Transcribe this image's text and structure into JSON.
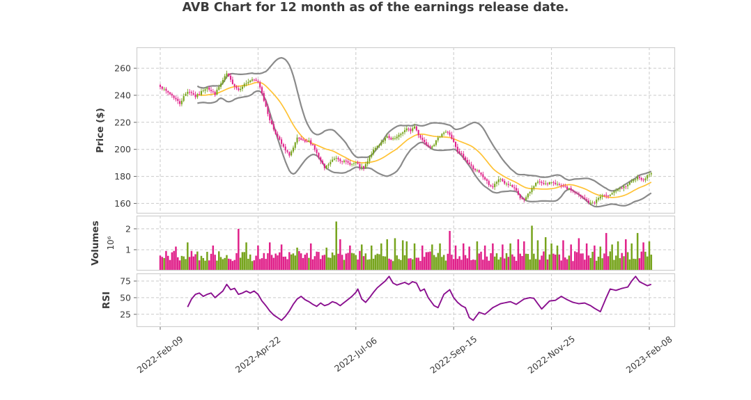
{
  "chart_data": {
    "type": "candlestick+volume+rsi",
    "title": "AVB Chart for 12 month as of the earnings release date.",
    "n_points": 252,
    "x_axis": {
      "tick_indices": [
        0,
        50,
        100,
        150,
        200,
        250
      ],
      "tick_labels": [
        "2022-Feb-09",
        "2022-Apr-22",
        "2022-Jul-06",
        "2022-Sep-15",
        "2022-Nov-25",
        "2023-Feb-08"
      ],
      "grid": true
    },
    "price_panel": {
      "ylabel": "Price ($)",
      "yticks": [
        260,
        240,
        220,
        200,
        180,
        160
      ],
      "ylim": [
        152.5,
        275.5
      ],
      "grid": true,
      "indicators": {
        "sma_window": 20,
        "bollinger_window": 20,
        "bollinger_mult": 2
      },
      "close_anchors": [
        [
          0,
          247
        ],
        [
          2,
          244
        ],
        [
          4,
          242
        ],
        [
          6,
          240
        ],
        [
          8,
          237
        ],
        [
          10,
          234
        ],
        [
          12,
          239
        ],
        [
          14,
          243
        ],
        [
          16,
          242
        ],
        [
          18,
          239
        ],
        [
          20,
          241
        ],
        [
          22,
          244
        ],
        [
          24,
          246
        ],
        [
          26,
          243
        ],
        [
          28,
          241
        ],
        [
          30,
          246
        ],
        [
          32,
          251
        ],
        [
          34,
          256
        ],
        [
          36,
          251
        ],
        [
          38,
          247
        ],
        [
          40,
          244
        ],
        [
          42,
          247
        ],
        [
          44,
          249
        ],
        [
          46,
          251
        ],
        [
          48,
          251
        ],
        [
          50,
          250
        ],
        [
          52,
          242
        ],
        [
          54,
          231
        ],
        [
          56,
          222
        ],
        [
          58,
          215
        ],
        [
          60,
          209
        ],
        [
          62,
          204
        ],
        [
          64,
          199
        ],
        [
          66,
          196
        ],
        [
          68,
          201
        ],
        [
          70,
          208
        ],
        [
          72,
          207
        ],
        [
          74,
          205
        ],
        [
          76,
          206
        ],
        [
          78,
          203
        ],
        [
          80,
          197
        ],
        [
          82,
          191
        ],
        [
          84,
          186
        ],
        [
          86,
          189
        ],
        [
          88,
          192
        ],
        [
          90,
          194
        ],
        [
          92,
          192
        ],
        [
          94,
          191
        ],
        [
          96,
          190
        ],
        [
          98,
          189
        ],
        [
          100,
          190
        ],
        [
          102,
          187
        ],
        [
          104,
          186
        ],
        [
          106,
          191
        ],
        [
          108,
          197
        ],
        [
          110,
          201
        ],
        [
          112,
          204
        ],
        [
          114,
          207
        ],
        [
          116,
          209
        ],
        [
          118,
          207
        ],
        [
          120,
          208
        ],
        [
          122,
          210
        ],
        [
          124,
          213
        ],
        [
          126,
          215
        ],
        [
          128,
          214
        ],
        [
          130,
          217
        ],
        [
          132,
          211
        ],
        [
          134,
          207
        ],
        [
          136,
          204
        ],
        [
          138,
          202
        ],
        [
          140,
          204
        ],
        [
          142,
          208
        ],
        [
          144,
          212
        ],
        [
          146,
          213
        ],
        [
          148,
          211
        ],
        [
          150,
          205
        ],
        [
          152,
          198
        ],
        [
          154,
          196
        ],
        [
          156,
          192
        ],
        [
          158,
          189
        ],
        [
          160,
          186
        ],
        [
          162,
          184
        ],
        [
          164,
          181
        ],
        [
          166,
          178
        ],
        [
          168,
          174
        ],
        [
          170,
          172
        ],
        [
          172,
          176
        ],
        [
          174,
          178
        ],
        [
          176,
          175
        ],
        [
          178,
          174
        ],
        [
          180,
          172
        ],
        [
          182,
          169
        ],
        [
          184,
          164
        ],
        [
          186,
          162
        ],
        [
          188,
          167
        ],
        [
          190,
          171
        ],
        [
          192,
          175
        ],
        [
          194,
          176
        ],
        [
          196,
          175
        ],
        [
          198,
          174
        ],
        [
          200,
          176
        ],
        [
          202,
          175
        ],
        [
          204,
          173
        ],
        [
          206,
          172
        ],
        [
          208,
          171
        ],
        [
          210,
          170
        ],
        [
          212,
          168
        ],
        [
          214,
          166
        ],
        [
          216,
          164
        ],
        [
          218,
          162
        ],
        [
          220,
          160
        ],
        [
          222,
          161
        ],
        [
          224,
          164
        ],
        [
          226,
          166
        ],
        [
          228,
          165
        ],
        [
          230,
          167
        ],
        [
          232,
          169
        ],
        [
          234,
          170
        ],
        [
          236,
          171
        ],
        [
          238,
          173
        ],
        [
          240,
          175
        ],
        [
          242,
          177
        ],
        [
          244,
          179
        ],
        [
          246,
          177
        ],
        [
          248,
          179
        ],
        [
          250,
          182
        ],
        [
          251,
          183
        ]
      ]
    },
    "volume_panel": {
      "ylabel": "Volumes",
      "scale_label": "10⁶",
      "yticks": [
        2,
        1
      ],
      "unit": "millions",
      "ylim": [
        0,
        2.63
      ],
      "grid": true,
      "base_range": [
        0.45,
        0.95
      ],
      "spikes": [
        [
          8,
          1.15
        ],
        [
          14,
          1.35
        ],
        [
          27,
          1.2
        ],
        [
          40,
          2.0
        ],
        [
          44,
          1.35
        ],
        [
          50,
          1.2
        ],
        [
          56,
          1.35
        ],
        [
          62,
          1.25
        ],
        [
          70,
          1.1
        ],
        [
          77,
          1.3
        ],
        [
          85,
          1.1
        ],
        [
          90,
          2.35
        ],
        [
          92,
          1.5
        ],
        [
          97,
          1.2
        ],
        [
          103,
          1.25
        ],
        [
          108,
          1.2
        ],
        [
          113,
          1.3
        ],
        [
          116,
          1.5
        ],
        [
          120,
          1.55
        ],
        [
          124,
          1.45
        ],
        [
          126,
          1.4
        ],
        [
          130,
          1.3
        ],
        [
          134,
          1.2
        ],
        [
          139,
          1.25
        ],
        [
          143,
          1.3
        ],
        [
          148,
          1.9
        ],
        [
          151,
          1.2
        ],
        [
          155,
          1.3
        ],
        [
          158,
          1.15
        ],
        [
          162,
          1.4
        ],
        [
          166,
          1.2
        ],
        [
          170,
          1.3
        ],
        [
          175,
          1.25
        ],
        [
          179,
          1.3
        ],
        [
          183,
          1.5
        ],
        [
          186,
          1.4
        ],
        [
          190,
          2.15
        ],
        [
          193,
          1.45
        ],
        [
          197,
          1.6
        ],
        [
          200,
          1.3
        ],
        [
          203,
          1.2
        ],
        [
          206,
          1.45
        ],
        [
          210,
          1.25
        ],
        [
          214,
          1.55
        ],
        [
          218,
          1.3
        ],
        [
          222,
          1.2
        ],
        [
          225,
          1.15
        ],
        [
          228,
          1.8
        ],
        [
          231,
          1.25
        ],
        [
          234,
          1.4
        ],
        [
          238,
          1.5
        ],
        [
          241,
          1.3
        ],
        [
          244,
          1.8
        ],
        [
          247,
          1.35
        ],
        [
          250,
          1.4
        ]
      ]
    },
    "rsi_panel": {
      "ylabel": "RSI",
      "yticks": [
        75,
        50,
        25
      ],
      "ylim": [
        6,
        86.5
      ],
      "grid": true,
      "window": 14,
      "anchors": [
        [
          14,
          36
        ],
        [
          16,
          48
        ],
        [
          18,
          55
        ],
        [
          20,
          57
        ],
        [
          22,
          52
        ],
        [
          24,
          55
        ],
        [
          26,
          57
        ],
        [
          28,
          50
        ],
        [
          30,
          55
        ],
        [
          32,
          60
        ],
        [
          34,
          70
        ],
        [
          36,
          62
        ],
        [
          38,
          64
        ],
        [
          40,
          55
        ],
        [
          42,
          57
        ],
        [
          44,
          60
        ],
        [
          46,
          57
        ],
        [
          48,
          60
        ],
        [
          50,
          55
        ],
        [
          52,
          45
        ],
        [
          54,
          38
        ],
        [
          56,
          30
        ],
        [
          58,
          24
        ],
        [
          60,
          20
        ],
        [
          62,
          16
        ],
        [
          64,
          22
        ],
        [
          66,
          30
        ],
        [
          68,
          40
        ],
        [
          70,
          48
        ],
        [
          72,
          52
        ],
        [
          74,
          47
        ],
        [
          76,
          44
        ],
        [
          78,
          40
        ],
        [
          80,
          37
        ],
        [
          82,
          42
        ],
        [
          84,
          38
        ],
        [
          86,
          40
        ],
        [
          88,
          44
        ],
        [
          90,
          42
        ],
        [
          92,
          38
        ],
        [
          95,
          45
        ],
        [
          98,
          52
        ],
        [
          100,
          58
        ],
        [
          101,
          63
        ],
        [
          103,
          48
        ],
        [
          105,
          43
        ],
        [
          107,
          50
        ],
        [
          109,
          58
        ],
        [
          111,
          65
        ],
        [
          113,
          70
        ],
        [
          115,
          75
        ],
        [
          117,
          82
        ],
        [
          119,
          72
        ],
        [
          121,
          69
        ],
        [
          123,
          71
        ],
        [
          125,
          73
        ],
        [
          127,
          70
        ],
        [
          129,
          74
        ],
        [
          131,
          72
        ],
        [
          133,
          60
        ],
        [
          135,
          63
        ],
        [
          137,
          50
        ],
        [
          140,
          38
        ],
        [
          142,
          35
        ],
        [
          145,
          55
        ],
        [
          148,
          62
        ],
        [
          150,
          50
        ],
        [
          152,
          43
        ],
        [
          154,
          38
        ],
        [
          156,
          35
        ],
        [
          158,
          20
        ],
        [
          160,
          16
        ],
        [
          163,
          28
        ],
        [
          166,
          25
        ],
        [
          170,
          35
        ],
        [
          174,
          41
        ],
        [
          179,
          44
        ],
        [
          182,
          40
        ],
        [
          186,
          48
        ],
        [
          189,
          50
        ],
        [
          191,
          49
        ],
        [
          195,
          33
        ],
        [
          199,
          45
        ],
        [
          202,
          46
        ],
        [
          205,
          52
        ],
        [
          208,
          47
        ],
        [
          211,
          43
        ],
        [
          214,
          41
        ],
        [
          217,
          42
        ],
        [
          220,
          38
        ],
        [
          222,
          34
        ],
        [
          225,
          29
        ],
        [
          228,
          50
        ],
        [
          230,
          63
        ],
        [
          233,
          61
        ],
        [
          236,
          64
        ],
        [
          239,
          66
        ],
        [
          241,
          75
        ],
        [
          243,
          82
        ],
        [
          245,
          74
        ],
        [
          247,
          71
        ],
        [
          249,
          68
        ],
        [
          251,
          70
        ]
      ]
    },
    "colors": {
      "candle_up": "#77a41d",
      "candle_down": "#e0218a",
      "sma_line": "#ffc233",
      "bollinger_band": "#8a8a8a",
      "rsi_line": "#8a0f8f",
      "gridline": "#c9c9c9",
      "panel_border": "#cfcfcf",
      "tick_label": "#3b3b3b",
      "title": "#3a3a3a",
      "background": "#ffffff"
    },
    "render_hints": {
      "seed": 7,
      "close_jitter": 0.8,
      "wick_jitter": 2.1,
      "legend": "none"
    }
  }
}
